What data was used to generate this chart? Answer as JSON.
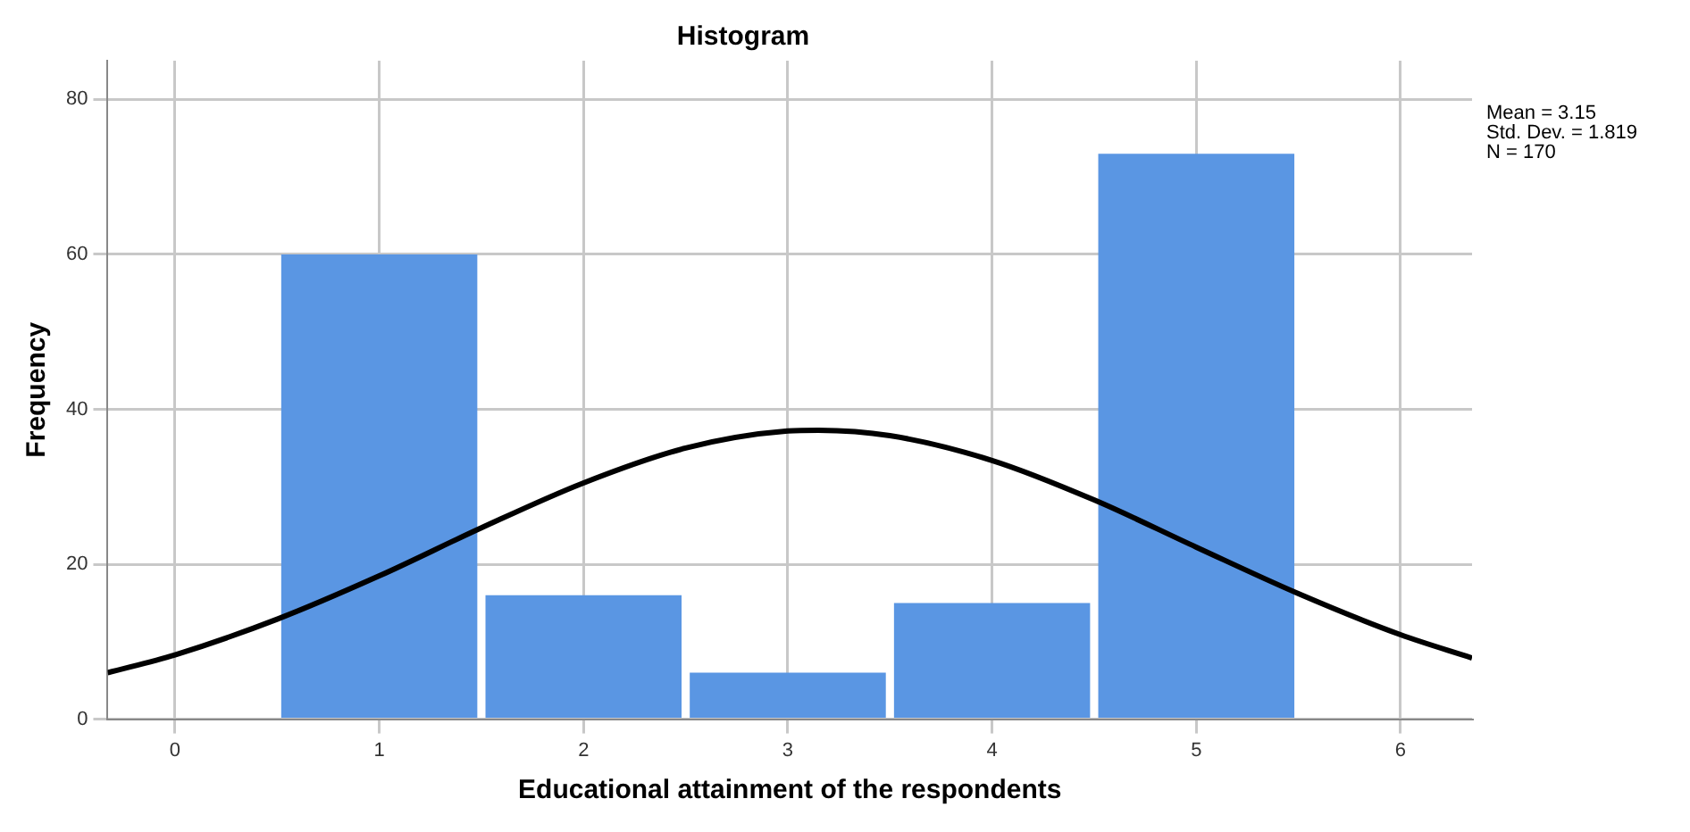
{
  "chart_data": {
    "type": "histogram",
    "title": "Histogram",
    "xlabel": "Educational attainment of the respondents",
    "ylabel": "Frequency",
    "bins": [
      0.5,
      1.5,
      2.5,
      3.5,
      4.5,
      5.5
    ],
    "values": [
      60,
      16,
      6,
      15,
      73
    ],
    "color": "#5a96e3",
    "series": [
      {
        "type": "line",
        "color": "#000000",
        "x": [
          -0.33,
          0,
          0.5,
          1,
          1.5,
          2,
          2.5,
          3,
          3.15,
          3.5,
          4,
          4.5,
          5,
          5.5,
          6,
          6.35
        ],
        "values": [
          6.0,
          8.3,
          12.9,
          18.5,
          24.7,
          30.5,
          35.0,
          37.2,
          37.3,
          36.6,
          33.4,
          28.3,
          22.2,
          16.2,
          10.9,
          7.9
        ]
      }
    ],
    "xlim": [
      -0.33,
      6.35
    ],
    "xticks": [
      0,
      1,
      2,
      3,
      4,
      5,
      6
    ],
    "ylim": [
      0,
      85
    ],
    "yticks": [
      0,
      20,
      40,
      60,
      80
    ],
    "grid": true,
    "annotations": [
      "Mean = 3.15",
      "Std. Dev. = 1.819",
      "N = 170"
    ]
  }
}
